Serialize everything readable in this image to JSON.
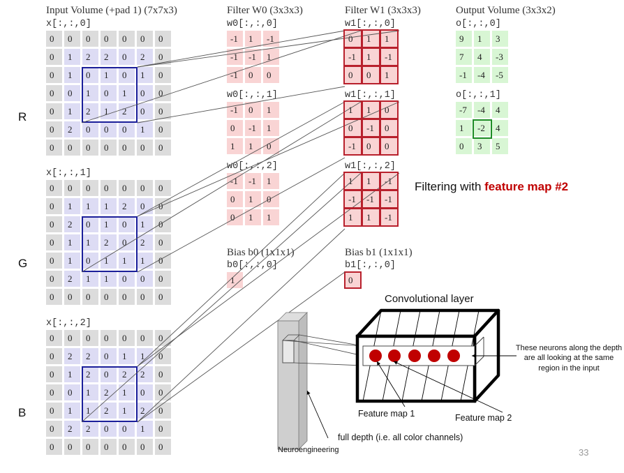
{
  "titles": {
    "input": "Input Volume (+pad 1) (7x7x3)",
    "filter_w0": "Filter W0 (3x3x3)",
    "filter_w1": "Filter W1 (3x3x3)",
    "output": "Output Volume (3x3x2)",
    "bias_b0": "Bias b0 (1x1x1)",
    "bias_b1": "Bias b1 (1x1x1)"
  },
  "input_volume": [
    {
      "label": "x[:,:,0]",
      "rows": [
        [
          0,
          0,
          0,
          0,
          0,
          0,
          0
        ],
        [
          0,
          1,
          2,
          2,
          0,
          2,
          0
        ],
        [
          0,
          1,
          0,
          1,
          0,
          1,
          0
        ],
        [
          0,
          0,
          1,
          0,
          1,
          0,
          0
        ],
        [
          0,
          1,
          2,
          1,
          2,
          0,
          0
        ],
        [
          0,
          2,
          0,
          0,
          0,
          1,
          0
        ],
        [
          0,
          0,
          0,
          0,
          0,
          0,
          0
        ]
      ]
    },
    {
      "label": "x[:,:,1]",
      "rows": [
        [
          0,
          0,
          0,
          0,
          0,
          0,
          0
        ],
        [
          0,
          1,
          1,
          1,
          2,
          0,
          0
        ],
        [
          0,
          2,
          0,
          1,
          0,
          1,
          0
        ],
        [
          0,
          1,
          1,
          2,
          0,
          2,
          0
        ],
        [
          0,
          1,
          0,
          1,
          1,
          1,
          0
        ],
        [
          0,
          2,
          1,
          1,
          0,
          0,
          0
        ],
        [
          0,
          0,
          0,
          0,
          0,
          0,
          0
        ]
      ]
    },
    {
      "label": "x[:,:,2]",
      "rows": [
        [
          0,
          0,
          0,
          0,
          0,
          0,
          0
        ],
        [
          0,
          2,
          2,
          0,
          1,
          1,
          0
        ],
        [
          0,
          1,
          2,
          0,
          2,
          2,
          0
        ],
        [
          0,
          0,
          1,
          2,
          1,
          0,
          0
        ],
        [
          0,
          1,
          1,
          2,
          1,
          2,
          0
        ],
        [
          0,
          2,
          2,
          0,
          0,
          1,
          0
        ],
        [
          0,
          0,
          0,
          0,
          0,
          0,
          0
        ]
      ]
    }
  ],
  "filter_w0": [
    {
      "label": "w0[:,:,0]",
      "rows": [
        [
          -1,
          1,
          -1
        ],
        [
          -1,
          -1,
          1
        ],
        [
          -1,
          0,
          0
        ]
      ]
    },
    {
      "label": "w0[:,:,1]",
      "rows": [
        [
          -1,
          0,
          1
        ],
        [
          0,
          -1,
          1
        ],
        [
          1,
          1,
          0
        ]
      ]
    },
    {
      "label": "w0[:,:,2]",
      "rows": [
        [
          -1,
          -1,
          1
        ],
        [
          0,
          1,
          0
        ],
        [
          0,
          1,
          1
        ]
      ]
    }
  ],
  "filter_w1": [
    {
      "label": "w1[:,:,0]",
      "rows": [
        [
          0,
          1,
          1
        ],
        [
          -1,
          1,
          -1
        ],
        [
          0,
          0,
          1
        ]
      ]
    },
    {
      "label": "w1[:,:,1]",
      "rows": [
        [
          1,
          1,
          0
        ],
        [
          0,
          -1,
          0
        ],
        [
          -1,
          0,
          0
        ]
      ]
    },
    {
      "label": "w1[:,:,2]",
      "rows": [
        [
          1,
          1,
          -1
        ],
        [
          -1,
          -1,
          -1
        ],
        [
          1,
          1,
          -1
        ]
      ]
    }
  ],
  "output_volume": [
    {
      "label": "o[:,:,0]",
      "rows": [
        [
          9,
          1,
          3
        ],
        [
          7,
          4,
          -3
        ],
        [
          -1,
          -4,
          -5
        ]
      ]
    },
    {
      "label": "o[:,:,1]",
      "rows": [
        [
          -7,
          -4,
          4
        ],
        [
          1,
          -2,
          4
        ],
        [
          0,
          3,
          5
        ]
      ]
    }
  ],
  "bias": {
    "b0_label": "b0[:,:,0]",
    "b0_value": "1",
    "b1_label": "b1[:,:,0]",
    "b1_value": "0"
  },
  "channel_labels": [
    "R",
    "G",
    "B"
  ],
  "heading": {
    "prefix": "Filtering with ",
    "emphasis": "feature map #2",
    "emphasis_color": "#c00000"
  },
  "conv_diagram": {
    "layer_title": "Convolutional layer",
    "feature_map_1": "Feature map 1",
    "feature_map_2": "Feature map 2",
    "depth_note": "full depth (i.e. all color channels)",
    "neurons_note": "These neurons along the depth are all looking at the same region in the input",
    "neuron_color": "#c00000"
  },
  "footer": {
    "source": "Neuroengineering",
    "page_number": "33"
  }
}
